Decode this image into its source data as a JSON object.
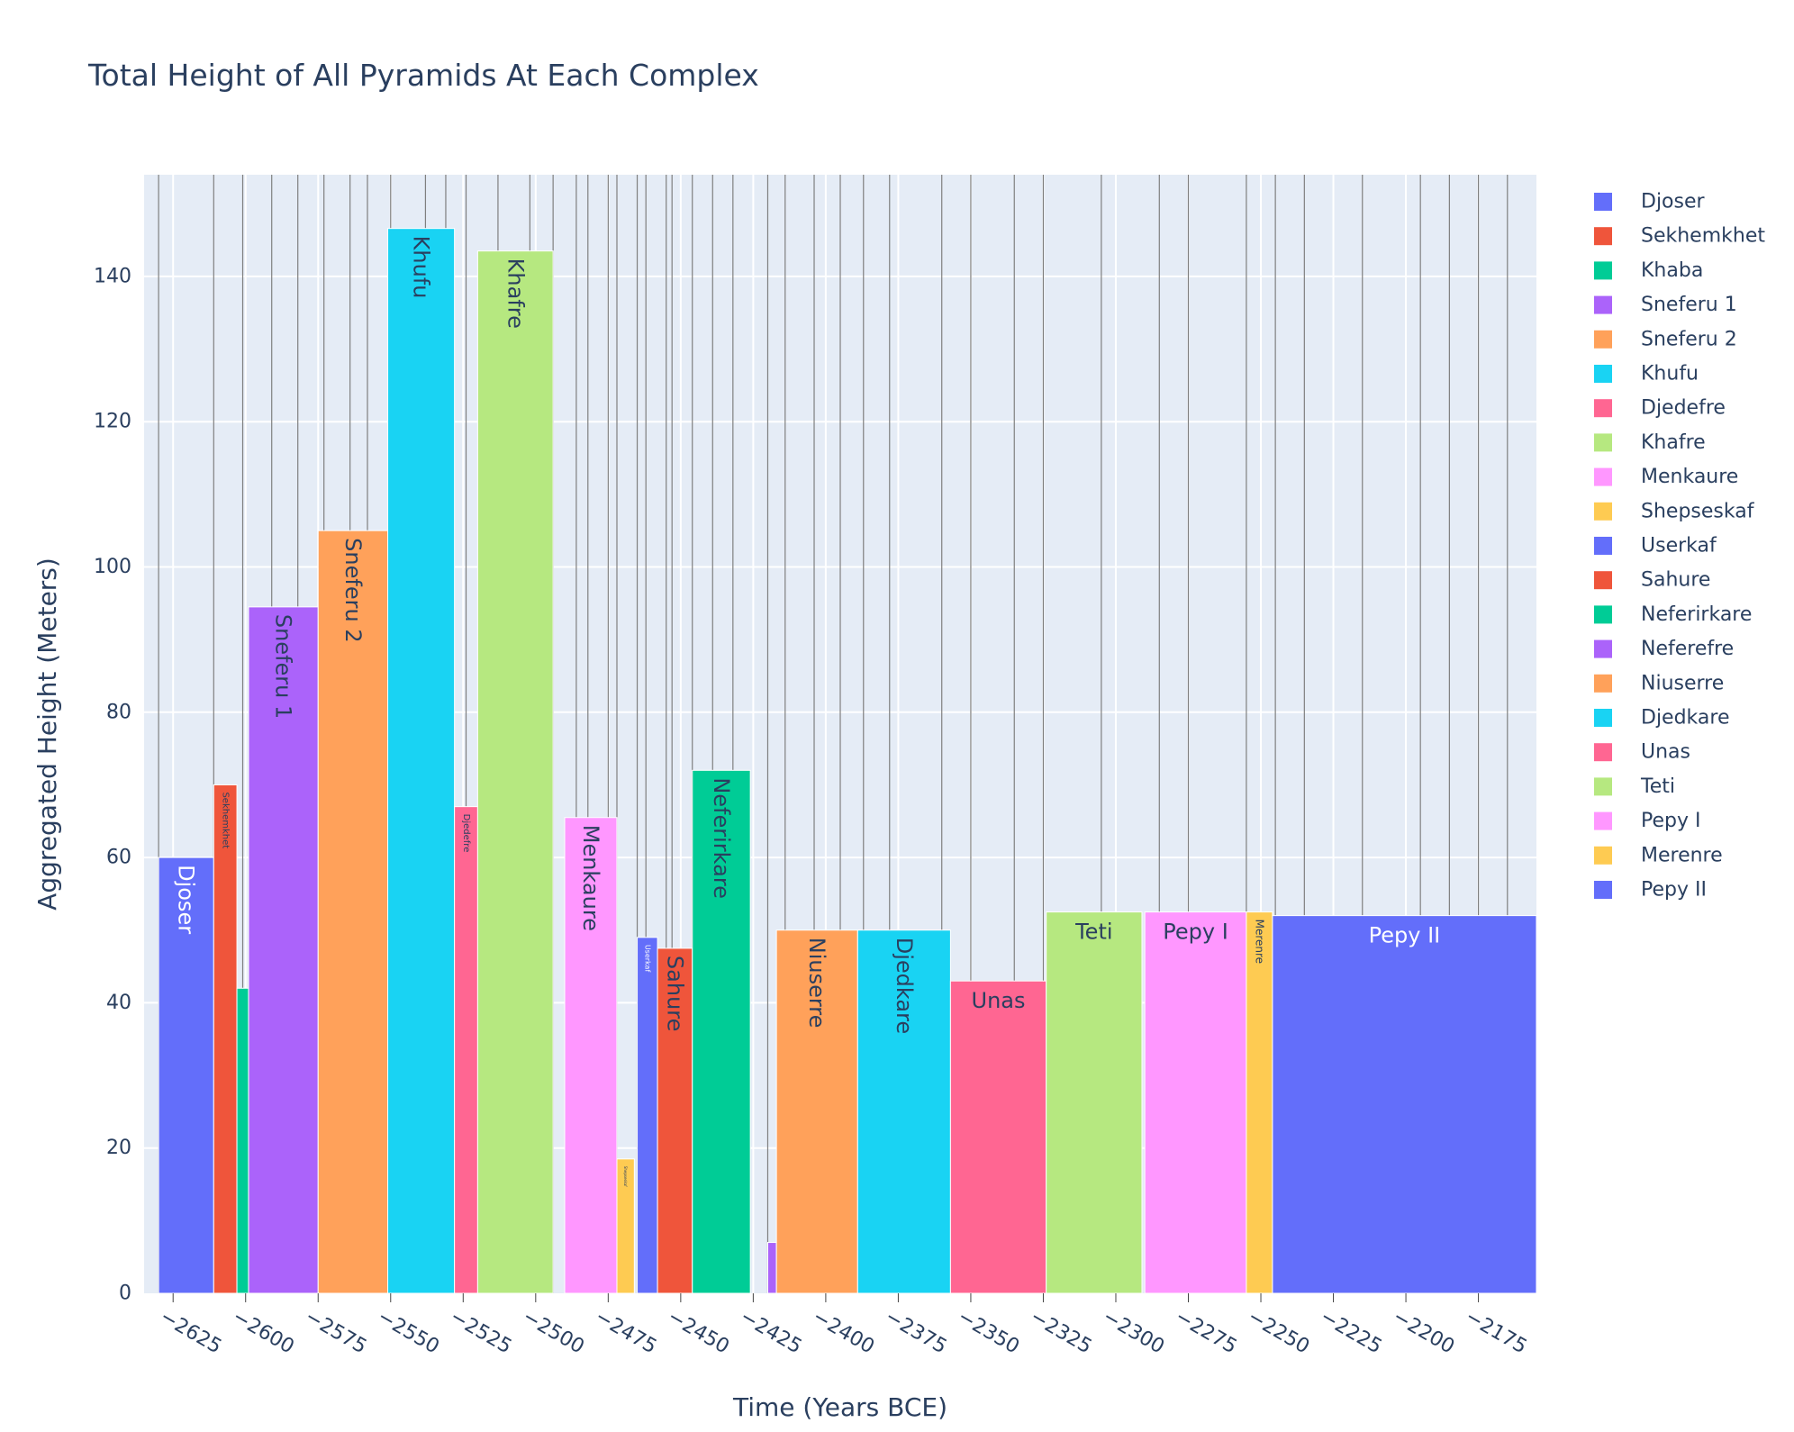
{
  "chart_data": {
    "type": "bar",
    "title": "Total Height of All Pyramids At Each Complex",
    "xlabel": "Time (Years BCE)",
    "ylabel": "Aggregated Height (Meters)",
    "xlim": [
      -2635,
      -2155
    ],
    "ylim": [
      0,
      154
    ],
    "x_ticks": [
      -2625,
      -2600,
      -2575,
      -2550,
      -2525,
      -2500,
      -2475,
      -2450,
      -2425,
      -2400,
      -2375,
      -2350,
      -2325,
      -2300,
      -2275,
      -2250,
      -2225,
      -2200,
      -2175
    ],
    "y_ticks": [
      0,
      20,
      40,
      60,
      80,
      100,
      120,
      140
    ],
    "legend_position": "right",
    "vertical_lines": [
      -2630,
      -2611,
      -2601,
      -2591,
      -2582,
      -2573,
      -2564,
      -2558,
      -2550,
      -2538,
      -2531,
      -2524,
      -2513,
      -2502,
      -2494,
      -2486,
      -2482,
      -2475,
      -2472,
      -2465,
      -2462,
      -2455,
      -2453,
      -2446,
      -2439,
      -2432,
      -2420,
      -2414,
      -2404,
      -2395,
      -2387,
      -2378,
      -2360,
      -2350,
      -2335,
      -2325,
      -2305,
      -2285,
      -2275,
      -2255,
      -2245,
      -2235,
      -2215,
      -2195,
      -2185,
      -2175,
      -2165
    ],
    "series": [
      {
        "name": "Djoser",
        "start": -2630,
        "end": -2611,
        "value": 60,
        "color": "#636efa",
        "label_color": "#ffffff",
        "label_dir": "vertical",
        "label_size": 24
      },
      {
        "name": "Sekhemkhet",
        "start": -2611,
        "end": -2603,
        "value": 70,
        "color": "#ef553b",
        "label_color": "#2a3f5f",
        "label_dir": "vertical",
        "label_size": 10
      },
      {
        "name": "Khaba",
        "start": -2603,
        "end": -2599,
        "value": 42,
        "color": "#00cc96",
        "label_color": "#2a3f5f",
        "label_dir": "none",
        "label_size": 0
      },
      {
        "name": "Sneferu 1",
        "start": -2599,
        "end": -2575,
        "value": 94.5,
        "color": "#ab63fa",
        "label_color": "#2a3f5f",
        "label_dir": "vertical",
        "label_size": 24
      },
      {
        "name": "Sneferu 2",
        "start": -2575,
        "end": -2551,
        "value": 105,
        "color": "#ffa15a",
        "label_color": "#2a3f5f",
        "label_dir": "vertical",
        "label_size": 24
      },
      {
        "name": "Khufu",
        "start": -2551,
        "end": -2528,
        "value": 146.6,
        "color": "#19d3f3",
        "label_color": "#2a3f5f",
        "label_dir": "vertical",
        "label_size": 24
      },
      {
        "name": "Djedefre",
        "start": -2528,
        "end": -2520,
        "value": 67,
        "color": "#ff6692",
        "label_color": "#2a3f5f",
        "label_dir": "vertical",
        "label_size": 10
      },
      {
        "name": "Khafre",
        "start": -2520,
        "end": -2494,
        "value": 143.5,
        "color": "#b6e880",
        "label_color": "#2a3f5f",
        "label_dir": "vertical",
        "label_size": 24
      },
      {
        "name": "Menkaure",
        "start": -2490,
        "end": -2472,
        "value": 65.5,
        "color": "#ff97ff",
        "label_color": "#2a3f5f",
        "label_dir": "vertical",
        "label_size": 24
      },
      {
        "name": "Shepseskaf",
        "start": -2472,
        "end": -2466,
        "value": 18.5,
        "color": "#fecb52",
        "label_color": "#2a3f5f",
        "label_dir": "vertical",
        "label_size": 4
      },
      {
        "name": "Userkaf",
        "start": -2465,
        "end": -2458,
        "value": 49,
        "color": "#636efa",
        "label_color": "#ffffff",
        "label_dir": "vertical",
        "label_size": 8
      },
      {
        "name": "Sahure",
        "start": -2458,
        "end": -2446,
        "value": 47.5,
        "color": "#ef553b",
        "label_color": "#2a3f5f",
        "label_dir": "vertical",
        "label_size": 24
      },
      {
        "name": "Neferirkare",
        "start": -2446,
        "end": -2426,
        "value": 72,
        "color": "#00cc96",
        "label_color": "#2a3f5f",
        "label_dir": "vertical",
        "label_size": 24
      },
      {
        "name": "Neferefre",
        "start": -2420,
        "end": -2417,
        "value": 7,
        "color": "#ab63fa",
        "label_color": "#2a3f5f",
        "label_dir": "none",
        "label_size": 0
      },
      {
        "name": "Niuserre",
        "start": -2417,
        "end": -2389,
        "value": 50,
        "color": "#ffa15a",
        "label_color": "#2a3f5f",
        "label_dir": "vertical",
        "label_size": 24
      },
      {
        "name": "Djedkare",
        "start": -2389,
        "end": -2357,
        "value": 50,
        "color": "#19d3f3",
        "label_color": "#2a3f5f",
        "label_dir": "vertical",
        "label_size": 24
      },
      {
        "name": "Unas",
        "start": -2357,
        "end": -2324,
        "value": 43,
        "color": "#ff6692",
        "label_color": "#2a3f5f",
        "label_dir": "horizontal",
        "label_size": 24
      },
      {
        "name": "Teti",
        "start": -2324,
        "end": -2291,
        "value": 52.5,
        "color": "#b6e880",
        "label_color": "#2a3f5f",
        "label_dir": "horizontal",
        "label_size": 24
      },
      {
        "name": "Pepy I",
        "start": -2290,
        "end": -2255,
        "value": 52.5,
        "color": "#ff97ff",
        "label_color": "#2a3f5f",
        "label_dir": "horizontal",
        "label_size": 24
      },
      {
        "name": "Merenre",
        "start": -2255,
        "end": -2246,
        "value": 52.5,
        "color": "#fecb52",
        "label_color": "#2a3f5f",
        "label_dir": "vertical",
        "label_size": 12
      },
      {
        "name": "Pepy II",
        "start": -2246,
        "end": -2155,
        "value": 52,
        "color": "#636efa",
        "label_color": "#ffffff",
        "label_dir": "horizontal",
        "label_size": 24
      }
    ]
  }
}
